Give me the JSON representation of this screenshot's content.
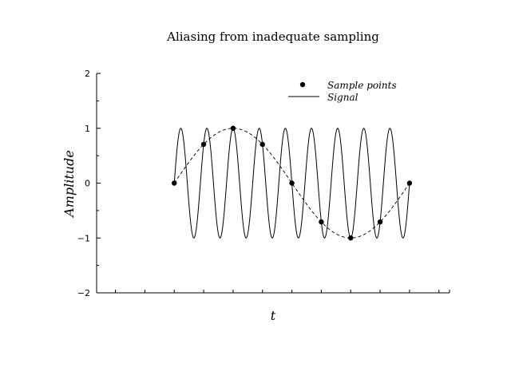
{
  "chart_data": {
    "type": "line",
    "title": "Aliasing from inadequate sampling",
    "xlabel": "t",
    "ylabel": "Amplitude",
    "xlim": [
      -0.33,
      1.17
    ],
    "ylim": [
      -2,
      2
    ],
    "yticks": [
      -2,
      -1,
      0,
      1,
      2
    ],
    "ytick_labels": [
      "−2",
      "−1",
      "0",
      "1",
      "2"
    ],
    "xticks_unlabeled": [
      -0.25,
      -0.125,
      0,
      0.125,
      0.25,
      0.375,
      0.5,
      0.625,
      0.75,
      0.875,
      1.0,
      1.125
    ],
    "grid": false,
    "legend_position": "top-right",
    "series": [
      {
        "name": "Sample points",
        "style": "markers",
        "x": [
          0,
          0.125,
          0.25,
          0.375,
          0.5,
          0.625,
          0.75,
          0.875,
          1.0
        ],
        "y": [
          0,
          0.707,
          1,
          0.707,
          0,
          -0.707,
          -1,
          -0.707,
          0
        ]
      },
      {
        "name": "Signal",
        "style": "solid",
        "function": "sin(2*pi*9*t)",
        "x_range": [
          0,
          1
        ],
        "frequency": 9,
        "amplitude": 1
      },
      {
        "name": "",
        "style": "dashed",
        "function": "sin(2*pi*1*t)",
        "x_range": [
          0,
          1
        ],
        "frequency": 1,
        "amplitude": 1
      }
    ],
    "colors": {
      "line": "#000000",
      "background": "#ffffff"
    }
  }
}
